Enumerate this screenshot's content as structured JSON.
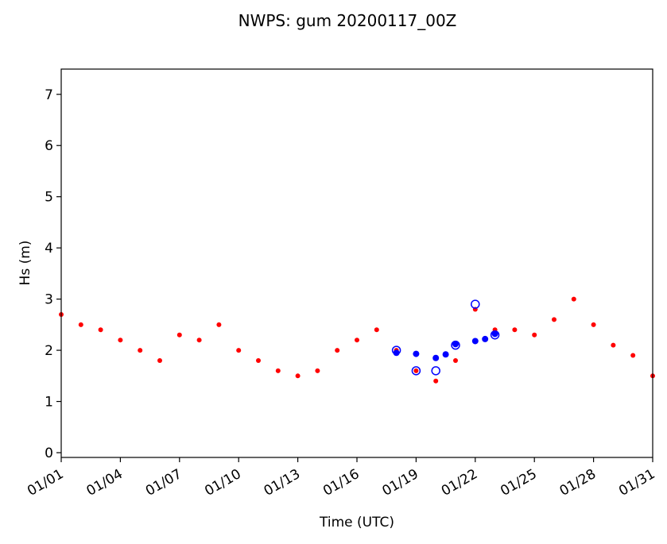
{
  "chart_data": {
    "type": "scatter",
    "title": "NWPS: gum 20200117_00Z",
    "xlabel": "Time (UTC)",
    "ylabel": "Hs (m)",
    "xlim": [
      "2020-01-01",
      "2020-01-31"
    ],
    "ylim": [
      0,
      7.4
    ],
    "x_ticks": [
      "01/01",
      "01/04",
      "01/07",
      "01/10",
      "01/13",
      "01/16",
      "01/19",
      "01/22",
      "01/25",
      "01/28",
      "01/31"
    ],
    "y_ticks": [
      0,
      1,
      2,
      3,
      4,
      5,
      6,
      7
    ],
    "grid": false,
    "legend": null,
    "series": [
      {
        "color": "#ff0000",
        "marker": "dot",
        "x": [
          "2020-01-01",
          "2020-01-02",
          "2020-01-03",
          "2020-01-04",
          "2020-01-05",
          "2020-01-06",
          "2020-01-07",
          "2020-01-08",
          "2020-01-09",
          "2020-01-10",
          "2020-01-11",
          "2020-01-12",
          "2020-01-13",
          "2020-01-14",
          "2020-01-15",
          "2020-01-16",
          "2020-01-17",
          "2020-01-18",
          "2020-01-19",
          "2020-01-20",
          "2020-01-21",
          "2020-01-22",
          "2020-01-23",
          "2020-01-24",
          "2020-01-25",
          "2020-01-26",
          "2020-01-27",
          "2020-01-28",
          "2020-01-29",
          "2020-01-30",
          "2020-01-31"
        ],
        "y": [
          2.7,
          2.5,
          2.4,
          2.2,
          2.0,
          1.8,
          2.3,
          2.2,
          2.5,
          2.0,
          1.8,
          1.6,
          1.5,
          1.6,
          2.0,
          2.2,
          2.4,
          2.0,
          1.6,
          1.4,
          1.8,
          2.8,
          2.4,
          2.4,
          2.3,
          2.6,
          3.0,
          2.5,
          2.1,
          1.9,
          1.5
        ]
      },
      {
        "color": "#0000ff",
        "marker": "dot",
        "x": [
          "2020-01-18",
          "2020-01-19",
          "2020-01-20",
          "2020-01-20 12:00",
          "2020-01-21",
          "2020-01-22",
          "2020-01-22 12:00",
          "2020-01-23"
        ],
        "y": [
          1.95,
          1.93,
          1.85,
          1.92,
          2.12,
          2.18,
          2.22,
          2.32
        ]
      },
      {
        "color": "#0000ff",
        "marker": "open-circle",
        "x": [
          "2020-01-18",
          "2020-01-19",
          "2020-01-20",
          "2020-01-21",
          "2020-01-22",
          "2020-01-23"
        ],
        "y": [
          2.0,
          1.6,
          1.6,
          2.1,
          2.9,
          2.3
        ]
      }
    ]
  }
}
